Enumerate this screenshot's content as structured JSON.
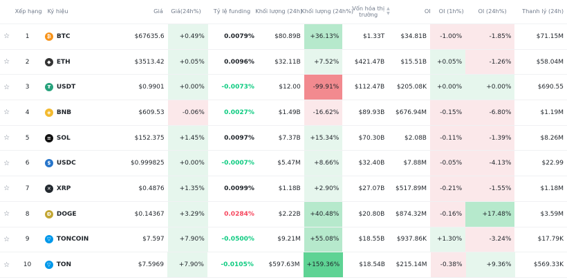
{
  "header": {
    "rank": "Xếp hạng",
    "symbol": "Ký hiệu",
    "price": "Giá",
    "price_change": "Giá(24h%)",
    "funding": "Tỷ lệ funding",
    "volume": "Khối lượng (24h)",
    "volume_change": "Khối lượng (24h%)",
    "market_cap_line1": "Vốn hóa thị",
    "market_cap_line2": "trường",
    "oi": "OI",
    "oi_1h": "OI (1h%)",
    "oi_24h": "OI (24h%)",
    "liquidation": "Thanh lý (24h)"
  },
  "colors": {
    "up_bg_light": "#e6f6ed",
    "up_bg_medium": "#b6e9cc",
    "up_bg_strong": "#5ed394",
    "down_bg_light": "#fbe8ea",
    "down_bg_strong": "#f28a8f",
    "up_text": "#0ecb81",
    "down_text": "#f6465d"
  },
  "rows": [
    {
      "rank": "1",
      "symbol": "BTC",
      "icon": "bitcoin-icon",
      "icon_color": "#f7931a",
      "icon_glyph": "₿",
      "price": "$67635.6",
      "price_change": "+0.49%",
      "price_change_bg": "#e6f6ed",
      "funding": "0.0079%",
      "funding_class": "neutral",
      "volume": "$80.89B",
      "volume_change": "+36.13%",
      "volume_change_bg": "#b6e9cc",
      "market_cap": "$1.33T",
      "oi": "$34.81B",
      "oi_1h": "-1.00%",
      "oi_1h_bg": "#fbe8ea",
      "oi_24h": "-1.85%",
      "oi_24h_bg": "#fbe8ea",
      "liquidation": "$71.15M"
    },
    {
      "rank": "2",
      "symbol": "ETH",
      "icon": "ethereum-icon",
      "icon_color": "#343434",
      "icon_glyph": "◆",
      "price": "$3513.42",
      "price_change": "+0.05%",
      "price_change_bg": "#e6f6ed",
      "funding": "0.0096%",
      "funding_class": "neutral",
      "volume": "$32.11B",
      "volume_change": "+7.52%",
      "volume_change_bg": "#e6f6ed",
      "market_cap": "$421.47B",
      "oi": "$15.51B",
      "oi_1h": "+0.05%",
      "oi_1h_bg": "#e6f6ed",
      "oi_24h": "-1.26%",
      "oi_24h_bg": "#fbe8ea",
      "liquidation": "$58.04M"
    },
    {
      "rank": "3",
      "symbol": "USDT",
      "icon": "tether-icon",
      "icon_color": "#26a17b",
      "icon_glyph": "₮",
      "price": "$0.9901",
      "price_change": "+0.00%",
      "price_change_bg": "#e6f6ed",
      "funding": "-0.0073%",
      "funding_class": "up",
      "volume": "$12.00",
      "volume_change": "-99.91%",
      "volume_change_bg": "#f28a8f",
      "market_cap": "$112.47B",
      "oi": "$205.08K",
      "oi_1h": "+0.00%",
      "oi_1h_bg": "#e6f6ed",
      "oi_24h": "+0.00%",
      "oi_24h_bg": "#e6f6ed",
      "liquidation": "$690.55"
    },
    {
      "rank": "4",
      "symbol": "BNB",
      "icon": "bnb-icon",
      "icon_color": "#f3ba2f",
      "icon_glyph": "◈",
      "price": "$609.53",
      "price_change": "-0.06%",
      "price_change_bg": "#fbe8ea",
      "funding": "0.0027%",
      "funding_class": "up",
      "volume": "$1.49B",
      "volume_change": "-16.62%",
      "volume_change_bg": "#fbe8ea",
      "market_cap": "$89.93B",
      "oi": "$676.94M",
      "oi_1h": "-0.15%",
      "oi_1h_bg": "#fbe8ea",
      "oi_24h": "-6.80%",
      "oi_24h_bg": "#fbe8ea",
      "liquidation": "$1.19M"
    },
    {
      "rank": "5",
      "symbol": "SOL",
      "icon": "solana-icon",
      "icon_color": "#111111",
      "icon_glyph": "≡",
      "price": "$152.375",
      "price_change": "+1.45%",
      "price_change_bg": "#e6f6ed",
      "funding": "0.0097%",
      "funding_class": "neutral",
      "volume": "$7.37B",
      "volume_change": "+15.34%",
      "volume_change_bg": "#e6f6ed",
      "market_cap": "$70.30B",
      "oi": "$2.08B",
      "oi_1h": "-0.11%",
      "oi_1h_bg": "#fbe8ea",
      "oi_24h": "-1.39%",
      "oi_24h_bg": "#fbe8ea",
      "liquidation": "$8.26M"
    },
    {
      "rank": "6",
      "symbol": "USDC",
      "icon": "usdc-icon",
      "icon_color": "#2775ca",
      "icon_glyph": "$",
      "price": "$0.999825",
      "price_change": "+0.00%",
      "price_change_bg": "#e6f6ed",
      "funding": "-0.0007%",
      "funding_class": "up",
      "volume": "$5.47M",
      "volume_change": "+8.66%",
      "volume_change_bg": "#e6f6ed",
      "market_cap": "$32.40B",
      "oi": "$7.88M",
      "oi_1h": "-0.05%",
      "oi_1h_bg": "#fbe8ea",
      "oi_24h": "-4.13%",
      "oi_24h_bg": "#fbe8ea",
      "liquidation": "$22.99"
    },
    {
      "rank": "7",
      "symbol": "XRP",
      "icon": "xrp-icon",
      "icon_color": "#23292f",
      "icon_glyph": "✕",
      "price": "$0.4876",
      "price_change": "+1.35%",
      "price_change_bg": "#e6f6ed",
      "funding": "0.0099%",
      "funding_class": "neutral",
      "volume": "$1.18B",
      "volume_change": "+2.90%",
      "volume_change_bg": "#e6f6ed",
      "market_cap": "$27.07B",
      "oi": "$517.89M",
      "oi_1h": "-0.21%",
      "oi_1h_bg": "#fbe8ea",
      "oi_24h": "-1.55%",
      "oi_24h_bg": "#fbe8ea",
      "liquidation": "$1.18M"
    },
    {
      "rank": "8",
      "symbol": "DOGE",
      "icon": "doge-icon",
      "icon_color": "#c2a633",
      "icon_glyph": "Ð",
      "price": "$0.14367",
      "price_change": "+3.29%",
      "price_change_bg": "#e6f6ed",
      "funding": "0.0284%",
      "funding_class": "dn",
      "volume": "$2.22B",
      "volume_change": "+40.48%",
      "volume_change_bg": "#b6e9cc",
      "market_cap": "$20.80B",
      "oi": "$874.32M",
      "oi_1h": "-0.16%",
      "oi_1h_bg": "#fbe8ea",
      "oi_24h": "+17.48%",
      "oi_24h_bg": "#b6e9cc",
      "liquidation": "$3.59M"
    },
    {
      "rank": "9",
      "symbol": "TONCOIN",
      "icon": "toncoin-icon",
      "icon_color": "#0098ea",
      "icon_glyph": "▽",
      "price": "$7.597",
      "price_change": "+7.90%",
      "price_change_bg": "#e6f6ed",
      "funding": "-0.0500%",
      "funding_class": "up",
      "volume": "$9.21M",
      "volume_change": "+55.08%",
      "volume_change_bg": "#b6e9cc",
      "market_cap": "$18.55B",
      "oi": "$937.86K",
      "oi_1h": "+1.30%",
      "oi_1h_bg": "#e6f6ed",
      "oi_24h": "-3.24%",
      "oi_24h_bg": "#fbe8ea",
      "liquidation": "$17.79K"
    },
    {
      "rank": "10",
      "symbol": "TON",
      "icon": "ton-icon",
      "icon_color": "#0098ea",
      "icon_glyph": "▽",
      "price": "$7.5969",
      "price_change": "+7.90%",
      "price_change_bg": "#e6f6ed",
      "funding": "-0.0105%",
      "funding_class": "up",
      "volume": "$597.63M",
      "volume_change": "+159.36%",
      "volume_change_bg": "#5ed394",
      "market_cap": "$18.54B",
      "oi": "$215.14M",
      "oi_1h": "-0.38%",
      "oi_1h_bg": "#fbe8ea",
      "oi_24h": "+9.36%",
      "oi_24h_bg": "#e6f6ed",
      "liquidation": "$569.33K"
    }
  ]
}
